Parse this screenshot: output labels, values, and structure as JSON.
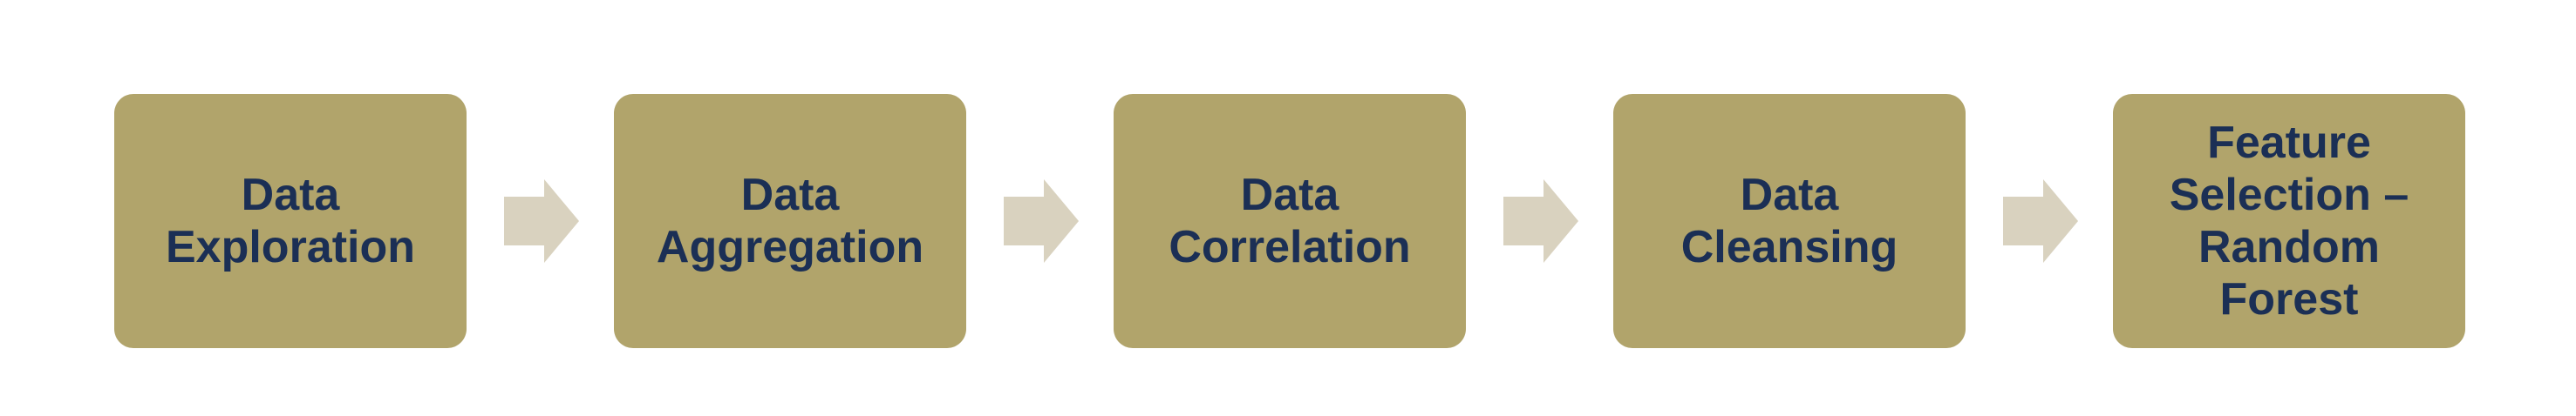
{
  "colors": {
    "box_fill": "#b1a46b",
    "label_text": "#1b2f55",
    "arrow_fill": "#d9d2bf",
    "background": "#ffffff"
  },
  "steps": [
    {
      "label": "Data\nExploration"
    },
    {
      "label": "Data\nAggregation"
    },
    {
      "label": "Data\nCorrelation"
    },
    {
      "label": "Data\nCleansing"
    },
    {
      "label": "Feature\nSelection –\nRandom\nForest"
    }
  ],
  "connectors": [
    {
      "icon": "right-arrow-icon"
    },
    {
      "icon": "right-arrow-icon"
    },
    {
      "icon": "right-arrow-icon"
    },
    {
      "icon": "right-arrow-icon"
    }
  ]
}
